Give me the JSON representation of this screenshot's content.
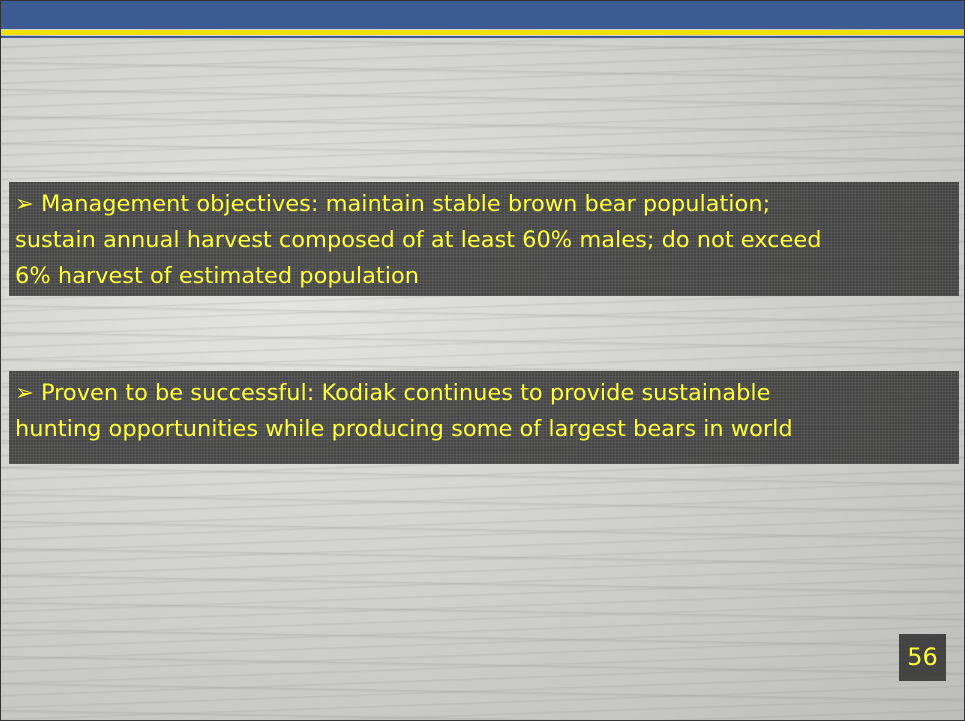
{
  "bullets": [
    {
      "lines": [
        "➢ Management objectives: maintain stable brown bear population;",
        "sustain annual harvest composed of at least 60% males; do not exceed",
        "6% harvest of estimated population"
      ]
    },
    {
      "lines": [
        "➢ Proven to be successful: Kodiak continues to provide sustainable",
        "hunting opportunities while producing some of largest bears in world"
      ]
    }
  ],
  "slide_number": "56"
}
